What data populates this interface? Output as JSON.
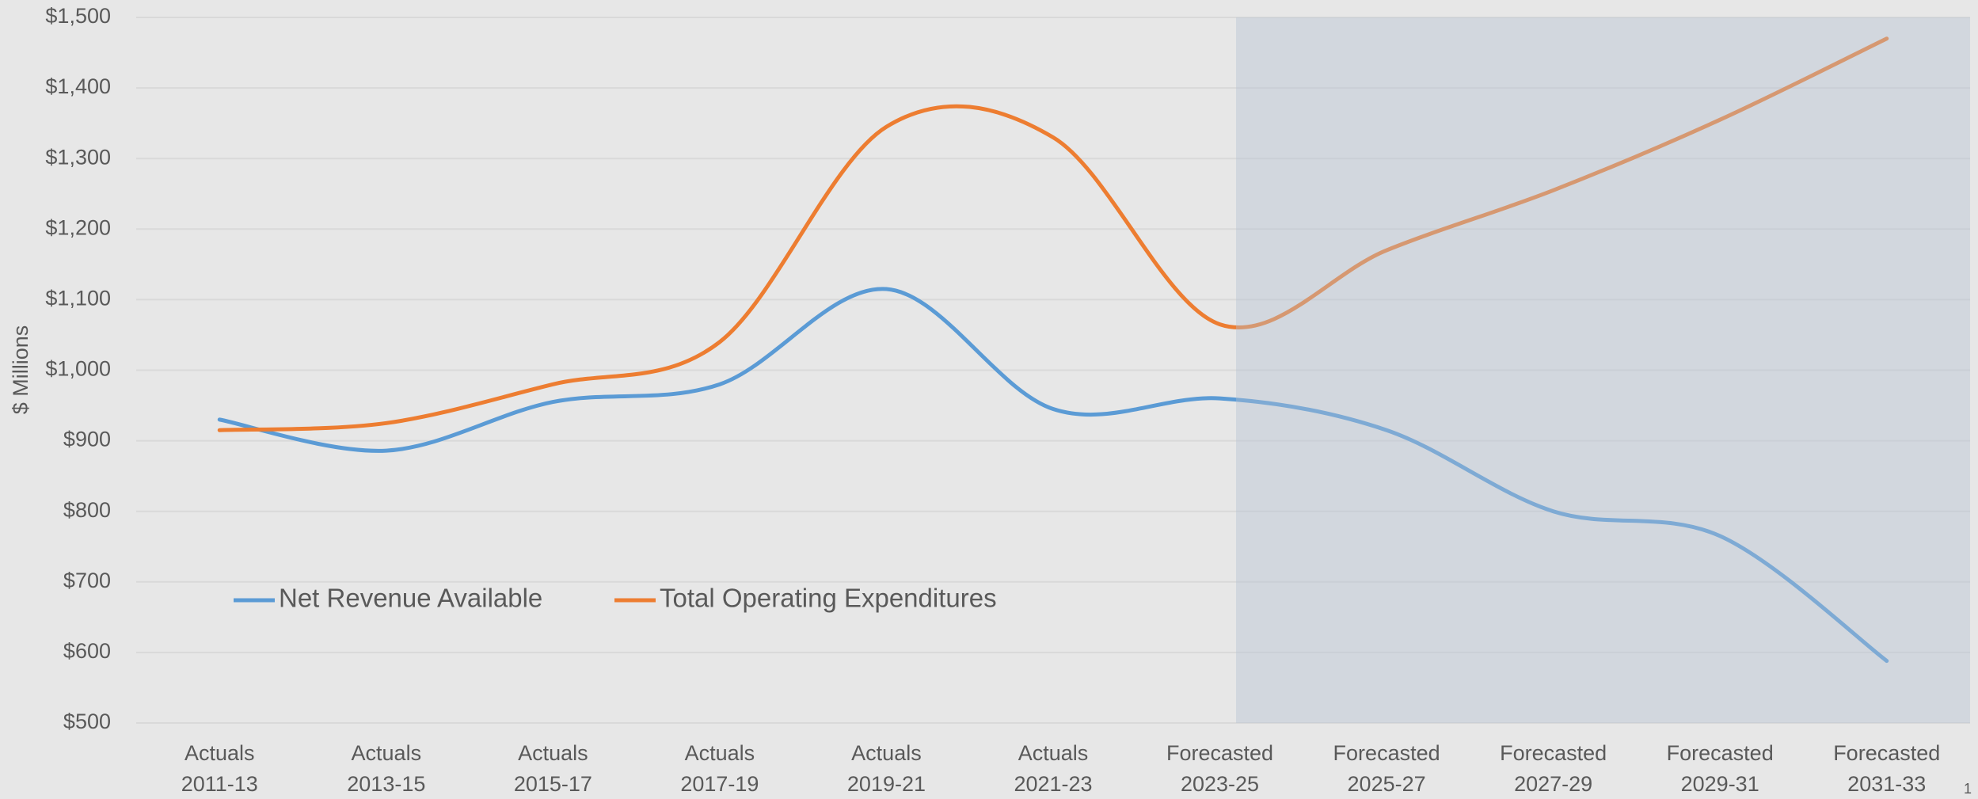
{
  "chart_data": {
    "type": "line",
    "y_label": "$ Millions",
    "categories": [
      "Actuals 2011-13",
      "Actuals 2013-15",
      "Actuals 2015-17",
      "Actuals 2017-19",
      "Actuals 2019-21",
      "Actuals 2021-23",
      "Forecasted 2023-25",
      "Forecasted 2025-27",
      "Forecasted 2027-29",
      "Forecasted 2029-31",
      "Forecasted 2031-33"
    ],
    "series": [
      {
        "name": "Net Revenue Available",
        "color": "#5b9bd5",
        "values": [
          930,
          886,
          955,
          980,
          1115,
          945,
          960,
          915,
          800,
          765,
          588
        ]
      },
      {
        "name": "Total Operating Expenditures",
        "color": "#ed7d31",
        "values": [
          915,
          925,
          980,
          1040,
          1345,
          1330,
          1065,
          1170,
          1255,
          1355,
          1470
        ]
      }
    ],
    "ylim": [
      500,
      1500
    ],
    "yticks": [
      {
        "value": 500,
        "label": "$500"
      },
      {
        "value": 600,
        "label": "$600"
      },
      {
        "value": 700,
        "label": "$700"
      },
      {
        "value": 800,
        "label": "$800"
      },
      {
        "value": 900,
        "label": "$900"
      },
      {
        "value": 1000,
        "label": "$1,000"
      },
      {
        "value": 1100,
        "label": "$1,100"
      },
      {
        "value": 1200,
        "label": "$1,200"
      },
      {
        "value": 1300,
        "label": "$1,300"
      },
      {
        "value": 1400,
        "label": "$1,400"
      },
      {
        "value": 1500,
        "label": "$1,500"
      }
    ],
    "grid": true,
    "legend": "bottom-left",
    "page_number": "1"
  }
}
